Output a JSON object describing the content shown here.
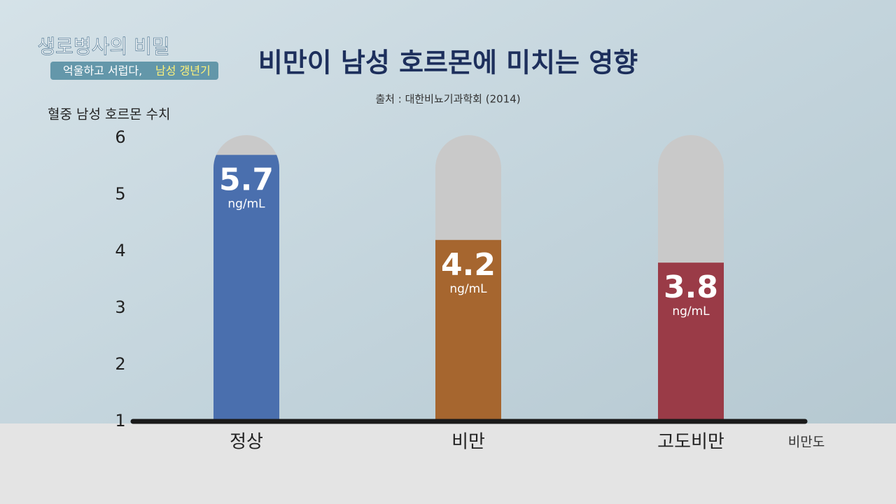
{
  "header": {
    "show": "생로병사의 비밀",
    "episode": [
      "억울하고 서럽다,",
      "남성 갱년기"
    ]
  },
  "chart_data": {
    "type": "bar",
    "title": "비만이 남성 호르몬에 미치는 영향",
    "subtitle": "출처 : 대한비뇨기과학회 (2014)",
    "y_label": "혈중 남성 호르몬 수치",
    "x_label": "비만도",
    "unit": "ng/mL",
    "categories": [
      "정상",
      "비만",
      "고도비만"
    ],
    "values": [
      5.7,
      4.2,
      3.8
    ],
    "colors": [
      "#4a6fae",
      "#a6662f",
      "#9a3b47"
    ],
    "track_color": "#c9c9c9",
    "ylim": [
      1,
      6
    ],
    "yticks": [
      1,
      2,
      3,
      4,
      5,
      6
    ]
  }
}
